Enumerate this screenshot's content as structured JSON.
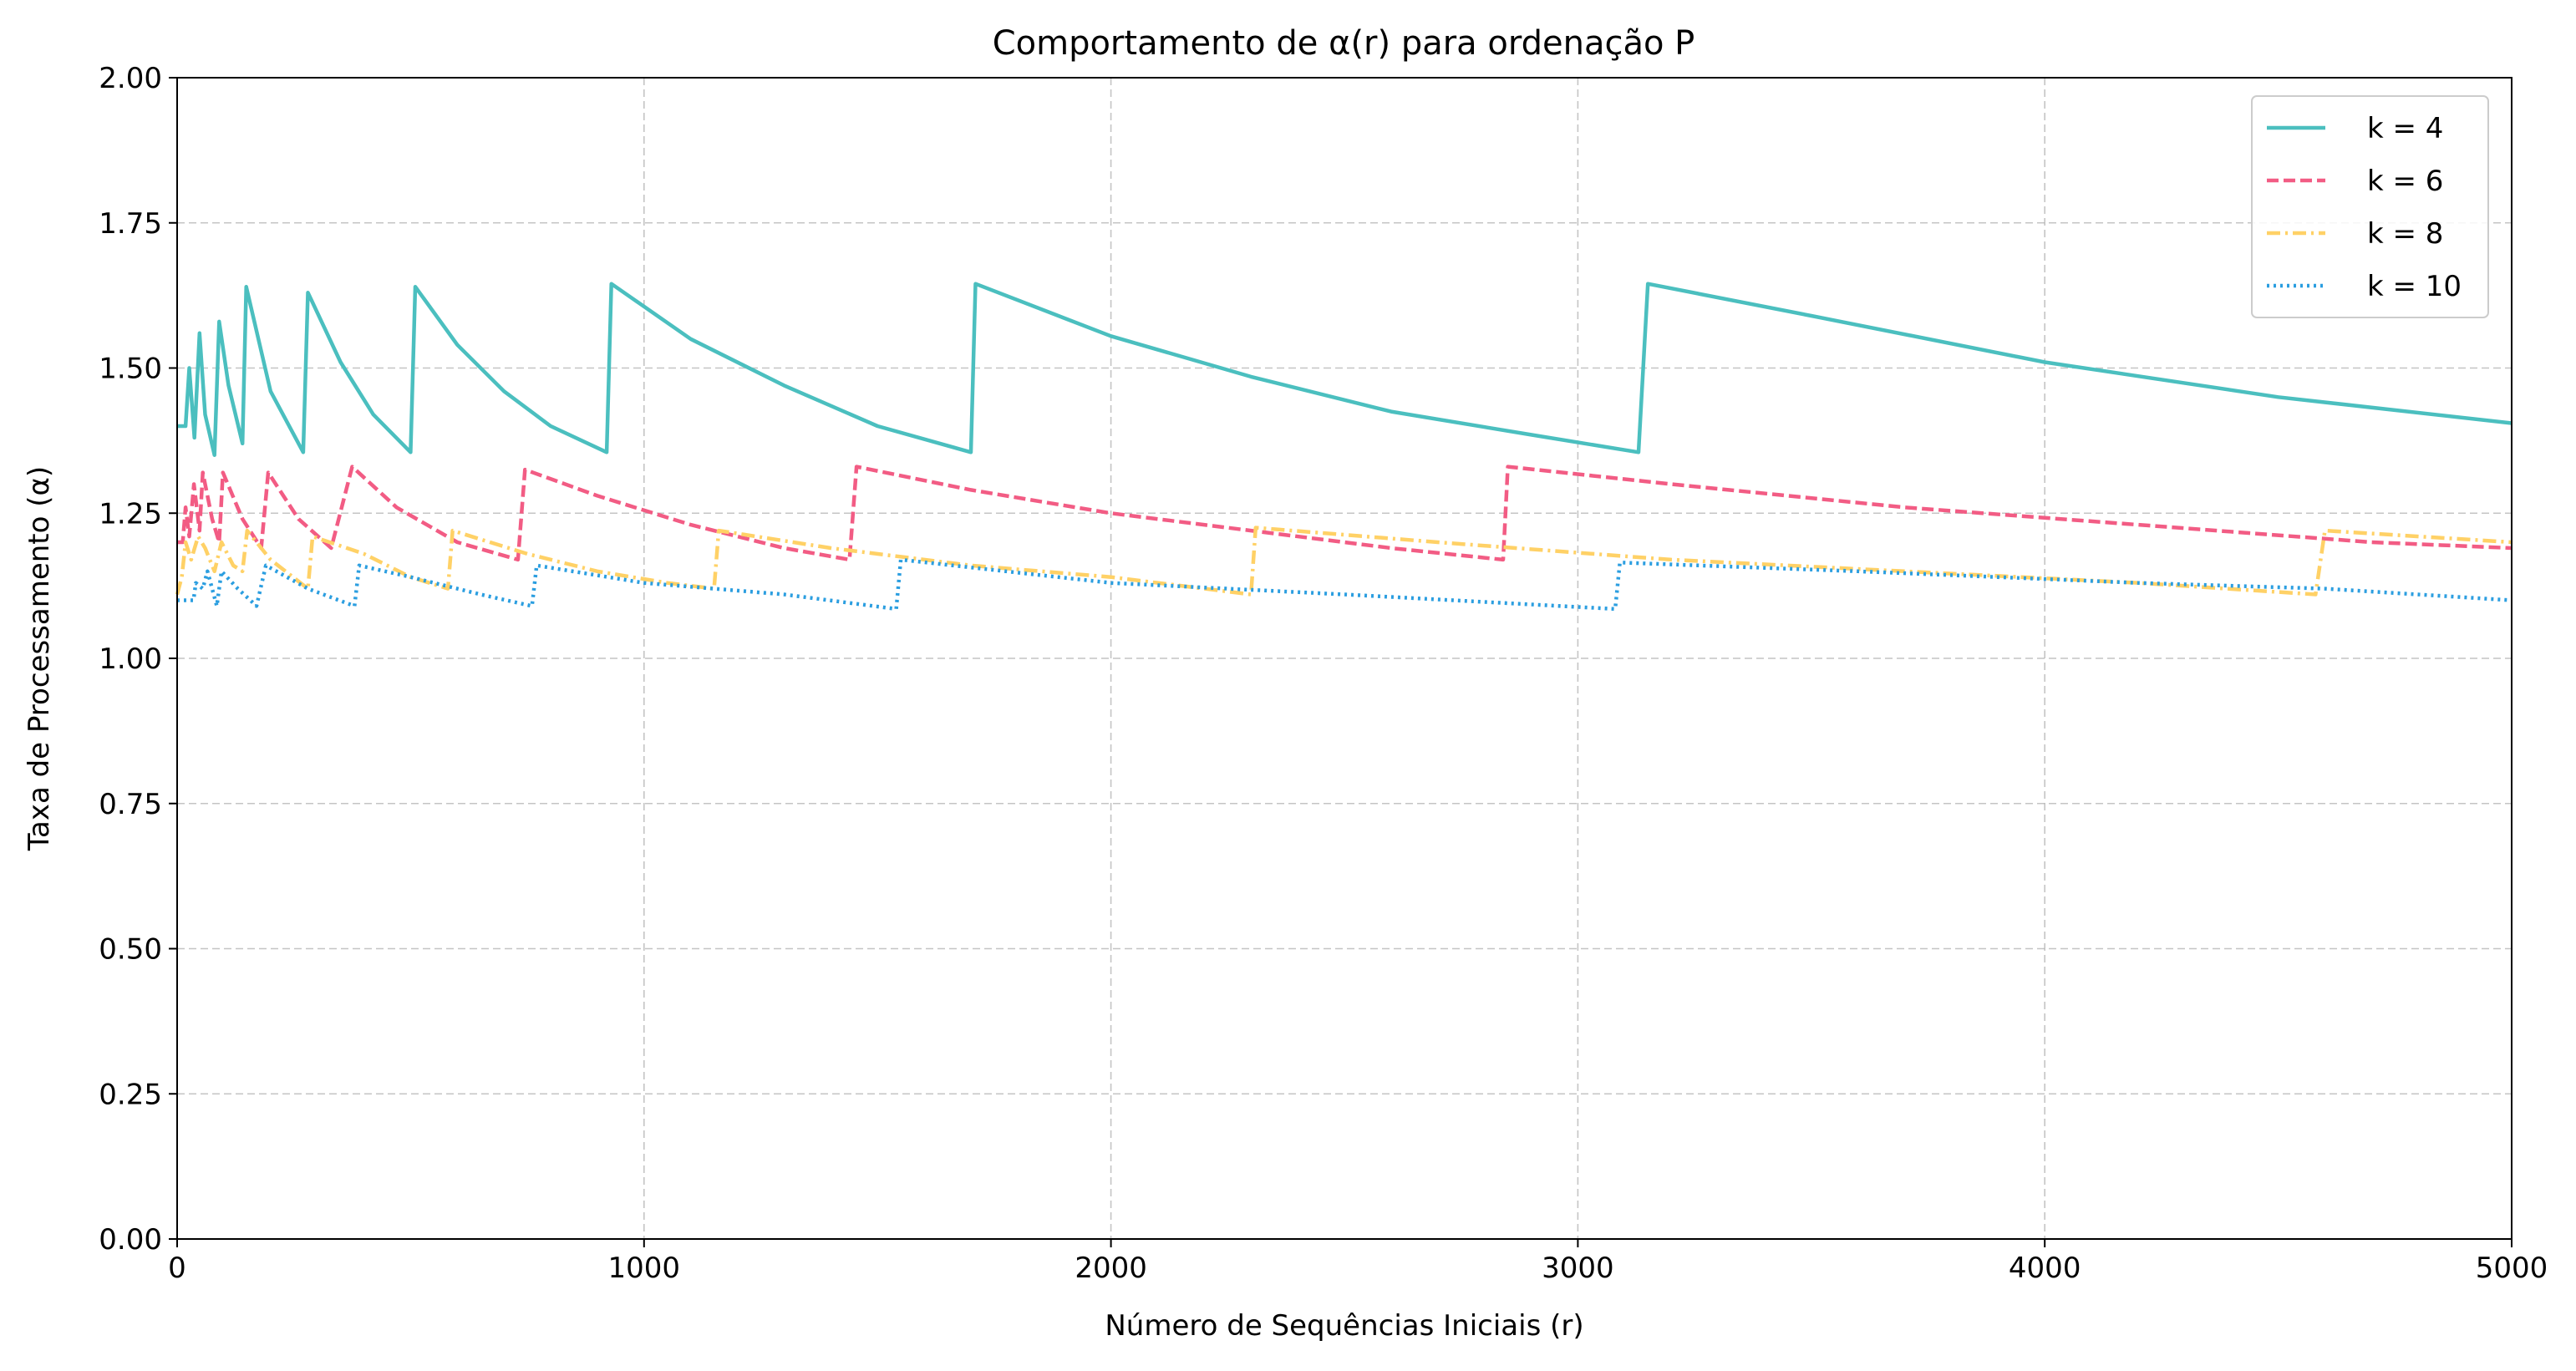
{
  "chart_data": {
    "type": "line",
    "title": "Comportamento de α(r) para ordenação P",
    "xlabel": "Número de Sequências Iniciais (r)",
    "ylabel": "Taxa de Processamento (α)",
    "xlim": [
      0,
      5000
    ],
    "ylim": [
      0,
      2
    ],
    "xticks": [
      0,
      1000,
      2000,
      3000,
      4000,
      5000
    ],
    "xtick_labels": [
      "0",
      "1000",
      "2000",
      "3000",
      "4000",
      "5000"
    ],
    "yticks": [
      0,
      0.25,
      0.5,
      0.75,
      1.0,
      1.25,
      1.5,
      1.75,
      2.0
    ],
    "ytick_labels": [
      "0.00",
      "0.25",
      "0.50",
      "0.75",
      "1.00",
      "1.25",
      "1.50",
      "1.75",
      "2.00"
    ],
    "grid": true,
    "legend_position": "top-right",
    "series": [
      {
        "name": "k = 4",
        "color": "#4bbfbf",
        "dash": "solid",
        "points": [
          [
            0,
            1.4
          ],
          [
            18,
            1.4
          ],
          [
            26,
            1.5
          ],
          [
            37,
            1.38
          ],
          [
            48,
            1.56
          ],
          [
            60,
            1.42
          ],
          [
            80,
            1.35
          ],
          [
            90,
            1.58
          ],
          [
            110,
            1.47
          ],
          [
            140,
            1.37
          ],
          [
            148,
            1.64
          ],
          [
            200,
            1.46
          ],
          [
            270,
            1.355
          ],
          [
            280,
            1.63
          ],
          [
            350,
            1.51
          ],
          [
            420,
            1.42
          ],
          [
            500,
            1.355
          ],
          [
            510,
            1.64
          ],
          [
            600,
            1.54
          ],
          [
            700,
            1.46
          ],
          [
            800,
            1.4
          ],
          [
            920,
            1.355
          ],
          [
            930,
            1.645
          ],
          [
            1100,
            1.55
          ],
          [
            1300,
            1.47
          ],
          [
            1500,
            1.4
          ],
          [
            1700,
            1.355
          ],
          [
            1710,
            1.645
          ],
          [
            2000,
            1.555
          ],
          [
            2300,
            1.485
          ],
          [
            2600,
            1.425
          ],
          [
            2900,
            1.385
          ],
          [
            3130,
            1.355
          ],
          [
            3150,
            1.645
          ],
          [
            3500,
            1.59
          ],
          [
            4000,
            1.51
          ],
          [
            4500,
            1.45
          ],
          [
            5000,
            1.405
          ]
        ]
      },
      {
        "name": "k = 6",
        "color": "#f25c84",
        "dash": "dashed",
        "points": [
          [
            0,
            1.2
          ],
          [
            12,
            1.2
          ],
          [
            18,
            1.26
          ],
          [
            26,
            1.21
          ],
          [
            36,
            1.3
          ],
          [
            48,
            1.22
          ],
          [
            55,
            1.32
          ],
          [
            75,
            1.24
          ],
          [
            90,
            1.2
          ],
          [
            98,
            1.32
          ],
          [
            140,
            1.24
          ],
          [
            180,
            1.19
          ],
          [
            195,
            1.32
          ],
          [
            260,
            1.24
          ],
          [
            330,
            1.19
          ],
          [
            375,
            1.33
          ],
          [
            470,
            1.26
          ],
          [
            600,
            1.2
          ],
          [
            730,
            1.17
          ],
          [
            745,
            1.325
          ],
          [
            900,
            1.28
          ],
          [
            1100,
            1.23
          ],
          [
            1300,
            1.19
          ],
          [
            1440,
            1.17
          ],
          [
            1455,
            1.33
          ],
          [
            1700,
            1.29
          ],
          [
            2000,
            1.25
          ],
          [
            2300,
            1.22
          ],
          [
            2600,
            1.19
          ],
          [
            2840,
            1.17
          ],
          [
            2850,
            1.33
          ],
          [
            3200,
            1.3
          ],
          [
            3700,
            1.26
          ],
          [
            4200,
            1.23
          ],
          [
            4700,
            1.2
          ],
          [
            5000,
            1.19
          ]
        ]
      },
      {
        "name": "k = 8",
        "color": "#ffd166",
        "dash": "dashdot",
        "points": [
          [
            0,
            1.11
          ],
          [
            10,
            1.14
          ],
          [
            18,
            1.2
          ],
          [
            30,
            1.17
          ],
          [
            45,
            1.21
          ],
          [
            60,
            1.19
          ],
          [
            80,
            1.15
          ],
          [
            95,
            1.2
          ],
          [
            120,
            1.16
          ],
          [
            140,
            1.15
          ],
          [
            150,
            1.22
          ],
          [
            200,
            1.17
          ],
          [
            280,
            1.12
          ],
          [
            290,
            1.21
          ],
          [
            400,
            1.18
          ],
          [
            500,
            1.14
          ],
          [
            580,
            1.12
          ],
          [
            590,
            1.22
          ],
          [
            750,
            1.18
          ],
          [
            900,
            1.15
          ],
          [
            1050,
            1.13
          ],
          [
            1150,
            1.12
          ],
          [
            1160,
            1.22
          ],
          [
            1400,
            1.19
          ],
          [
            1700,
            1.16
          ],
          [
            2000,
            1.14
          ],
          [
            2300,
            1.11
          ],
          [
            2310,
            1.225
          ],
          [
            2700,
            1.2
          ],
          [
            3200,
            1.17
          ],
          [
            3700,
            1.15
          ],
          [
            4200,
            1.13
          ],
          [
            4580,
            1.11
          ],
          [
            4600,
            1.22
          ],
          [
            5000,
            1.2
          ]
        ]
      },
      {
        "name": "k = 10",
        "color": "#2b9ee0",
        "dash": "dotted",
        "points": [
          [
            0,
            1.1
          ],
          [
            35,
            1.1
          ],
          [
            40,
            1.13
          ],
          [
            55,
            1.12
          ],
          [
            65,
            1.15
          ],
          [
            85,
            1.09
          ],
          [
            95,
            1.15
          ],
          [
            130,
            1.12
          ],
          [
            170,
            1.09
          ],
          [
            190,
            1.16
          ],
          [
            280,
            1.12
          ],
          [
            380,
            1.09
          ],
          [
            390,
            1.16
          ],
          [
            500,
            1.14
          ],
          [
            650,
            1.11
          ],
          [
            760,
            1.09
          ],
          [
            770,
            1.16
          ],
          [
            1000,
            1.13
          ],
          [
            1300,
            1.11
          ],
          [
            1540,
            1.085
          ],
          [
            1550,
            1.17
          ],
          [
            2000,
            1.13
          ],
          [
            2500,
            1.11
          ],
          [
            3080,
            1.085
          ],
          [
            3090,
            1.165
          ],
          [
            3600,
            1.15
          ],
          [
            4200,
            1.13
          ],
          [
            4600,
            1.12
          ],
          [
            5000,
            1.1
          ]
        ]
      }
    ]
  }
}
